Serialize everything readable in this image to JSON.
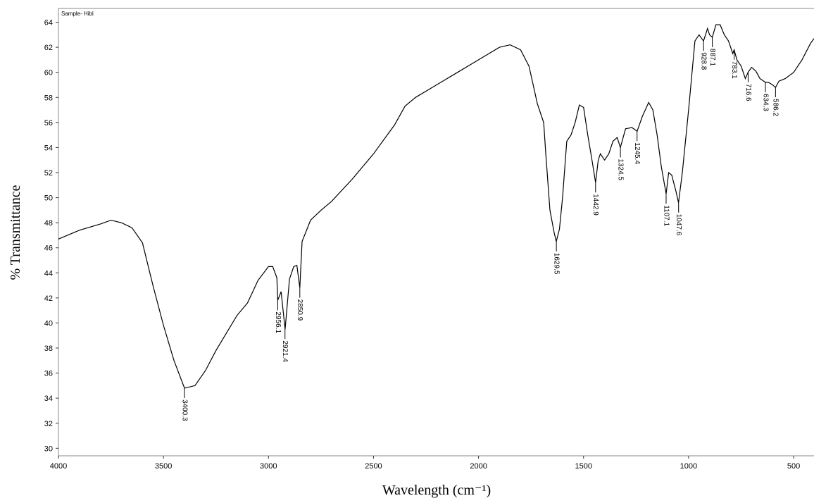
{
  "chart_data": {
    "type": "line",
    "annotation": "Sample- Hibl",
    "x_label": "Wavelength (cm⁻¹)",
    "y_label": "% Transmittance",
    "color": "#000000",
    "xlim": [
      4000,
      403
    ],
    "ylim": [
      29.4,
      65.1
    ],
    "xticks": [
      4000,
      3500,
      3000,
      2500,
      2000,
      1500,
      1000,
      500
    ],
    "yticks": [
      30,
      32,
      34,
      36,
      38,
      40,
      42,
      44,
      46,
      48,
      50,
      52,
      54,
      56,
      58,
      60,
      62,
      64
    ],
    "x": [
      4000,
      3900,
      3800,
      3750,
      3700,
      3650,
      3600,
      3550,
      3500,
      3450,
      3400,
      3350,
      3300,
      3250,
      3200,
      3150,
      3100,
      3050,
      3000,
      2980,
      2960,
      2956,
      2940,
      2921,
      2900,
      2880,
      2865,
      2851,
      2840,
      2800,
      2750,
      2700,
      2600,
      2500,
      2400,
      2350,
      2300,
      2200,
      2100,
      2000,
      1900,
      1850,
      1800,
      1760,
      1740,
      1720,
      1700,
      1690,
      1680,
      1660,
      1640,
      1630,
      1615,
      1600,
      1580,
      1560,
      1540,
      1520,
      1500,
      1480,
      1460,
      1443,
      1430,
      1420,
      1400,
      1380,
      1360,
      1340,
      1325,
      1300,
      1270,
      1245,
      1220,
      1190,
      1170,
      1150,
      1130,
      1107,
      1095,
      1080,
      1060,
      1048,
      1030,
      1000,
      970,
      950,
      929,
      910,
      900,
      887,
      870,
      850,
      830,
      810,
      790,
      783,
      770,
      750,
      730,
      717,
      700,
      680,
      660,
      634,
      620,
      600,
      586,
      570,
      540,
      500,
      460,
      420,
      403
    ],
    "values": [
      46.7,
      47.4,
      47.9,
      48.2,
      48.0,
      47.6,
      46.4,
      43.0,
      39.8,
      37.0,
      34.8,
      35.0,
      36.2,
      37.8,
      39.2,
      40.6,
      41.6,
      43.4,
      44.5,
      44.5,
      43.6,
      41.8,
      42.5,
      39.5,
      43.5,
      44.5,
      44.6,
      42.8,
      46.5,
      48.2,
      49.0,
      49.7,
      51.5,
      53.5,
      55.8,
      57.3,
      58.0,
      59.0,
      60.0,
      61.0,
      62.0,
      62.2,
      61.8,
      60.5,
      59.0,
      57.5,
      56.5,
      56.0,
      53.5,
      49.0,
      47.2,
      46.5,
      47.5,
      50.0,
      54.5,
      55.0,
      56.0,
      57.4,
      57.2,
      55.0,
      53.0,
      51.2,
      53.0,
      53.5,
      53.0,
      53.5,
      54.5,
      54.8,
      54.0,
      55.5,
      55.6,
      55.3,
      56.5,
      57.6,
      57.0,
      55.0,
      52.5,
      50.3,
      52.0,
      51.8,
      50.5,
      49.6,
      52.0,
      57.0,
      62.5,
      63.0,
      62.5,
      63.5,
      63.0,
      62.8,
      63.8,
      63.8,
      63.0,
      62.5,
      61.5,
      61.8,
      61.0,
      60.5,
      59.5,
      60.0,
      60.4,
      60.1,
      59.5,
      59.2,
      59.2,
      59.0,
      58.8,
      59.3,
      59.5,
      60.0,
      61.0,
      62.3,
      62.7
    ],
    "peaks": [
      {
        "x": 3400.3,
        "y": 34.8
      },
      {
        "x": 2956.1,
        "y": 41.8
      },
      {
        "x": 2921.4,
        "y": 39.5
      },
      {
        "x": 2850.9,
        "y": 42.8
      },
      {
        "x": 1629.5,
        "y": 46.5
      },
      {
        "x": 1442.9,
        "y": 51.2
      },
      {
        "x": 1324.5,
        "y": 54.0
      },
      {
        "x": 1245.4,
        "y": 55.3
      },
      {
        "x": 1107.1,
        "y": 50.3
      },
      {
        "x": 1047.6,
        "y": 49.6
      },
      {
        "x": 928.8,
        "y": 62.5
      },
      {
        "x": 887.1,
        "y": 62.8
      },
      {
        "x": 783.1,
        "y": 61.8
      },
      {
        "x": 716.6,
        "y": 60.0
      },
      {
        "x": 634.3,
        "y": 59.2
      },
      {
        "x": 586.2,
        "y": 58.8
      }
    ]
  }
}
